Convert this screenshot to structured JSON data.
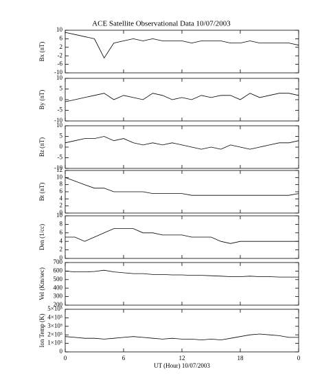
{
  "title": "ACE Satellite Observational Data   10/07/2003",
  "chart_data": [
    {
      "type": "line",
      "ylabel": "Bx (nT)",
      "color": "#000000",
      "xlim": [
        0,
        24
      ],
      "ylim": [
        -10,
        10
      ],
      "yticks": [
        -10,
        -6,
        -2,
        2,
        6,
        10
      ],
      "x": [
        0,
        1,
        2,
        3,
        4,
        5,
        6,
        7,
        8,
        9,
        10,
        11,
        12,
        13,
        14,
        15,
        16,
        17,
        18,
        19,
        20,
        21,
        22,
        23,
        24
      ],
      "values": [
        9,
        8,
        7,
        6,
        -3,
        4,
        5,
        6,
        5,
        6,
        5,
        5,
        5,
        4,
        5,
        5,
        5,
        4,
        4,
        5,
        4,
        4,
        4,
        4,
        3
      ]
    },
    {
      "type": "line",
      "ylabel": "By (nT)",
      "color": "#000000",
      "xlim": [
        0,
        24
      ],
      "ylim": [
        -10,
        10
      ],
      "yticks": [
        -10,
        -5,
        0,
        5,
        10
      ],
      "x": [
        0,
        1,
        2,
        3,
        4,
        5,
        6,
        7,
        8,
        9,
        10,
        11,
        12,
        13,
        14,
        15,
        16,
        17,
        18,
        19,
        20,
        21,
        22,
        23,
        24
      ],
      "values": [
        -1,
        0,
        1,
        2,
        3,
        0,
        2,
        1,
        0,
        3,
        2,
        0,
        1,
        0,
        2,
        1,
        2,
        2,
        0,
        3,
        1,
        2,
        3,
        3,
        2
      ]
    },
    {
      "type": "line",
      "ylabel": "Bz (nT)",
      "color": "#000000",
      "xlim": [
        0,
        24
      ],
      "ylim": [
        -10,
        10
      ],
      "yticks": [
        -10,
        -5,
        0,
        5,
        10
      ],
      "x": [
        0,
        1,
        2,
        3,
        4,
        5,
        6,
        7,
        8,
        9,
        10,
        11,
        12,
        13,
        14,
        15,
        16,
        17,
        18,
        19,
        20,
        21,
        22,
        23,
        24
      ],
      "values": [
        2,
        3,
        4,
        4,
        5,
        3,
        4,
        2,
        1,
        2,
        1,
        2,
        1,
        0,
        -1,
        0,
        -1,
        1,
        0,
        -1,
        0,
        1,
        2,
        2,
        3
      ]
    },
    {
      "type": "line",
      "ylabel": "Bt (nT)",
      "color": "#000000",
      "xlim": [
        0,
        24
      ],
      "ylim": [
        0,
        12
      ],
      "yticks": [
        0,
        2,
        4,
        6,
        8,
        10,
        12
      ],
      "x": [
        0,
        1,
        2,
        3,
        4,
        5,
        6,
        7,
        8,
        9,
        10,
        11,
        12,
        13,
        14,
        15,
        16,
        17,
        18,
        19,
        20,
        21,
        22,
        23,
        24
      ],
      "values": [
        10,
        9,
        8,
        7,
        7,
        6,
        6,
        6,
        6,
        5.5,
        5.5,
        5.5,
        5.5,
        5,
        5,
        5,
        5,
        5,
        5,
        5,
        5,
        5,
        5,
        5,
        5.5
      ]
    },
    {
      "type": "line",
      "ylabel": "Den (1/cc)",
      "color": "#000000",
      "xlim": [
        0,
        24
      ],
      "ylim": [
        0,
        10
      ],
      "yticks": [
        0,
        2,
        4,
        6,
        8,
        10
      ],
      "x": [
        0,
        1,
        2,
        3,
        4,
        5,
        6,
        7,
        8,
        9,
        10,
        11,
        12,
        13,
        14,
        15,
        16,
        17,
        18,
        19,
        20,
        21,
        22,
        23,
        24
      ],
      "values": [
        5,
        5,
        4,
        5,
        6,
        7,
        7,
        7,
        6,
        6,
        5.5,
        5.5,
        5.5,
        5,
        5,
        5,
        4,
        3.5,
        4,
        4,
        4,
        4,
        4,
        4,
        4
      ]
    },
    {
      "type": "line",
      "ylabel": "Vel (Km/sec)",
      "color": "#000000",
      "xlim": [
        0,
        24
      ],
      "ylim": [
        200,
        700
      ],
      "yticks": [
        200,
        300,
        400,
        500,
        600,
        700
      ],
      "x": [
        0,
        1,
        2,
        3,
        4,
        5,
        6,
        7,
        8,
        9,
        10,
        11,
        12,
        13,
        14,
        15,
        16,
        17,
        18,
        19,
        20,
        21,
        22,
        23,
        24
      ],
      "values": [
        600,
        590,
        590,
        595,
        610,
        590,
        580,
        570,
        570,
        560,
        560,
        555,
        555,
        550,
        550,
        545,
        540,
        535,
        535,
        540,
        535,
        535,
        530,
        530,
        530
      ]
    },
    {
      "type": "line",
      "ylabel": "Ion Temp (K)",
      "color": "#000000",
      "xlim": [
        0,
        24
      ],
      "ylim": [
        0,
        500000
      ],
      "yticks": [
        0,
        {
          "value": 100000,
          "label": "1×10⁵"
        },
        {
          "value": 200000,
          "label": "2×10⁵"
        },
        {
          "value": 300000,
          "label": "3×10⁵"
        },
        {
          "value": 400000,
          "label": "4×10⁵"
        },
        {
          "value": 500000,
          "label": "5×10⁵"
        }
      ],
      "x": [
        0,
        1,
        2,
        3,
        4,
        5,
        6,
        7,
        8,
        9,
        10,
        11,
        12,
        13,
        14,
        15,
        16,
        17,
        18,
        19,
        20,
        21,
        22,
        23,
        24
      ],
      "values": [
        180000,
        170000,
        160000,
        160000,
        150000,
        160000,
        170000,
        180000,
        170000,
        160000,
        150000,
        160000,
        150000,
        150000,
        140000,
        150000,
        140000,
        160000,
        180000,
        200000,
        210000,
        200000,
        190000,
        170000,
        170000
      ],
      "xticks": [
        0,
        6,
        12,
        18,
        {
          "value": 24,
          "label": "0"
        }
      ],
      "xlabel": "UT (Hour)  10/07/2003"
    }
  ]
}
